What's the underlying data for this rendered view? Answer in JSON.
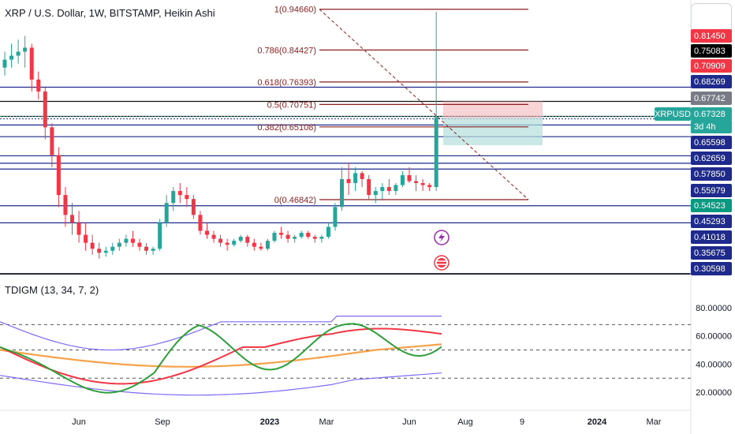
{
  "header": {
    "title": "XRP / U.S. Dollar, 1W, BITSTAMP, Heikin Ashi"
  },
  "indicator": {
    "title": "TDIGM (13, 34, 7, 2)",
    "axis_ticks": [
      "80.00000",
      "60.00000",
      "40.00000",
      "20.00000"
    ]
  },
  "xaxis": {
    "labels": [
      "Jun",
      "Sep",
      "2023",
      "Mar",
      "Jun",
      "Aug",
      "9",
      "2024",
      "Mar"
    ]
  },
  "price_axis": [
    {
      "label": "0.81450",
      "bg": "#f23645",
      "fg": "#ffffff"
    },
    {
      "label": "0.75083",
      "bg": "#000000",
      "fg": "#ffffff"
    },
    {
      "label": "0.70909",
      "bg": "#f23645",
      "fg": "#ffffff"
    },
    {
      "label": "0.68269",
      "bg": "#1e2b8c",
      "fg": "#ffffff"
    },
    {
      "label": "0.67742",
      "bg": "#787b86",
      "fg": "#ffffff"
    },
    {
      "label": "0.67328",
      "bg": "#26a69a",
      "fg": "#ffffff"
    },
    {
      "label": "3d 4h",
      "bg": "#26a69a",
      "fg": "#ffffff"
    },
    {
      "label": "0.65598",
      "bg": "#1e2b8c",
      "fg": "#ffffff"
    },
    {
      "label": "0.62659",
      "bg": "#1e2b8c",
      "fg": "#ffffff"
    },
    {
      "label": "0.57850",
      "bg": "#1e2b8c",
      "fg": "#ffffff"
    },
    {
      "label": "0.55979",
      "bg": "#1e2b8c",
      "fg": "#ffffff"
    },
    {
      "label": "0.54523",
      "bg": "#089981",
      "fg": "#ffffff"
    },
    {
      "label": "0.45293",
      "bg": "#1e2b8c",
      "fg": "#ffffff"
    },
    {
      "label": "0.41018",
      "bg": "#1e2b8c",
      "fg": "#ffffff"
    },
    {
      "label": "0.35675",
      "bg": "#1e2b8c",
      "fg": "#ffffff"
    },
    {
      "label": "0.30598",
      "bg": "#1e2b8c",
      "fg": "#ffffff"
    }
  ],
  "symbol_tag": "XRPUSD",
  "fib_levels": [
    {
      "label": "1(0.94660)"
    },
    {
      "label": "0.786(0.84427)"
    },
    {
      "label": "0.618(0.76393)"
    },
    {
      "label": "0.5(0.70751)"
    },
    {
      "label": "0.382(0.65108)"
    },
    {
      "label": "0(0.46842)"
    }
  ],
  "colors": {
    "up": "#26a69a",
    "down": "#f23645",
    "hline": "#1e2b8c",
    "fib": "#8b1e1e",
    "ind_green": "#2e9e3a",
    "ind_red": "#f23645",
    "ind_orange": "#f5a24a",
    "ind_band": "#7b6cf6"
  },
  "chart_data": {
    "type": "candlestick",
    "series": [
      {
        "name": "XRPUSD",
        "values": [
          [
            0.8,
            0.84,
            0.78,
            0.82
          ],
          [
            0.82,
            0.86,
            0.8,
            0.83
          ],
          [
            0.83,
            0.87,
            0.81,
            0.84
          ],
          [
            0.84,
            0.88,
            0.8,
            0.85
          ],
          [
            0.85,
            0.86,
            0.74,
            0.77
          ],
          [
            0.77,
            0.79,
            0.72,
            0.74
          ],
          [
            0.74,
            0.75,
            0.62,
            0.65
          ],
          [
            0.65,
            0.66,
            0.55,
            0.58
          ],
          [
            0.58,
            0.6,
            0.45,
            0.48
          ],
          [
            0.48,
            0.5,
            0.4,
            0.43
          ],
          [
            0.43,
            0.46,
            0.38,
            0.41
          ],
          [
            0.41,
            0.44,
            0.36,
            0.38
          ],
          [
            0.38,
            0.41,
            0.34,
            0.36
          ],
          [
            0.36,
            0.38,
            0.33,
            0.345
          ],
          [
            0.345,
            0.36,
            0.32,
            0.335
          ],
          [
            0.335,
            0.35,
            0.325,
            0.34
          ],
          [
            0.34,
            0.36,
            0.33,
            0.35
          ],
          [
            0.35,
            0.37,
            0.34,
            0.36
          ],
          [
            0.36,
            0.38,
            0.35,
            0.37
          ],
          [
            0.37,
            0.39,
            0.35,
            0.36
          ],
          [
            0.36,
            0.37,
            0.34,
            0.35
          ],
          [
            0.35,
            0.36,
            0.33,
            0.34
          ],
          [
            0.34,
            0.35,
            0.33,
            0.345
          ],
          [
            0.345,
            0.42,
            0.34,
            0.41
          ],
          [
            0.41,
            0.48,
            0.4,
            0.46
          ],
          [
            0.46,
            0.5,
            0.44,
            0.49
          ],
          [
            0.49,
            0.51,
            0.46,
            0.48
          ],
          [
            0.48,
            0.5,
            0.45,
            0.47
          ],
          [
            0.47,
            0.48,
            0.42,
            0.43
          ],
          [
            0.43,
            0.44,
            0.38,
            0.39
          ],
          [
            0.39,
            0.41,
            0.37,
            0.38
          ],
          [
            0.38,
            0.39,
            0.36,
            0.37
          ],
          [
            0.37,
            0.38,
            0.35,
            0.36
          ],
          [
            0.36,
            0.37,
            0.34,
            0.355
          ],
          [
            0.355,
            0.37,
            0.35,
            0.365
          ],
          [
            0.365,
            0.38,
            0.36,
            0.375
          ],
          [
            0.375,
            0.38,
            0.35,
            0.36
          ],
          [
            0.36,
            0.37,
            0.34,
            0.35
          ],
          [
            0.35,
            0.36,
            0.34,
            0.345
          ],
          [
            0.345,
            0.37,
            0.34,
            0.365
          ],
          [
            0.365,
            0.39,
            0.36,
            0.385
          ],
          [
            0.385,
            0.4,
            0.37,
            0.38
          ],
          [
            0.38,
            0.39,
            0.36,
            0.37
          ],
          [
            0.37,
            0.38,
            0.36,
            0.375
          ],
          [
            0.375,
            0.39,
            0.37,
            0.385
          ],
          [
            0.385,
            0.39,
            0.37,
            0.375
          ],
          [
            0.375,
            0.38,
            0.36,
            0.37
          ],
          [
            0.37,
            0.38,
            0.36,
            0.375
          ],
          [
            0.375,
            0.41,
            0.37,
            0.4
          ],
          [
            0.4,
            0.46,
            0.39,
            0.45
          ],
          [
            0.45,
            0.55,
            0.44,
            0.52
          ],
          [
            0.52,
            0.56,
            0.48,
            0.51
          ],
          [
            0.51,
            0.55,
            0.49,
            0.535
          ],
          [
            0.535,
            0.54,
            0.5,
            0.52
          ],
          [
            0.52,
            0.53,
            0.47,
            0.48
          ],
          [
            0.48,
            0.5,
            0.46,
            0.49
          ],
          [
            0.49,
            0.51,
            0.47,
            0.5
          ],
          [
            0.5,
            0.52,
            0.48,
            0.49
          ],
          [
            0.49,
            0.51,
            0.48,
            0.505
          ],
          [
            0.505,
            0.54,
            0.5,
            0.53
          ],
          [
            0.53,
            0.55,
            0.51,
            0.515
          ],
          [
            0.515,
            0.53,
            0.49,
            0.51
          ],
          [
            0.51,
            0.52,
            0.49,
            0.505
          ],
          [
            0.505,
            0.51,
            0.49,
            0.5
          ],
          [
            0.5,
            0.94,
            0.49,
            0.675
          ]
        ]
      }
    ],
    "ylim": [
      0.28,
      0.96
    ]
  }
}
